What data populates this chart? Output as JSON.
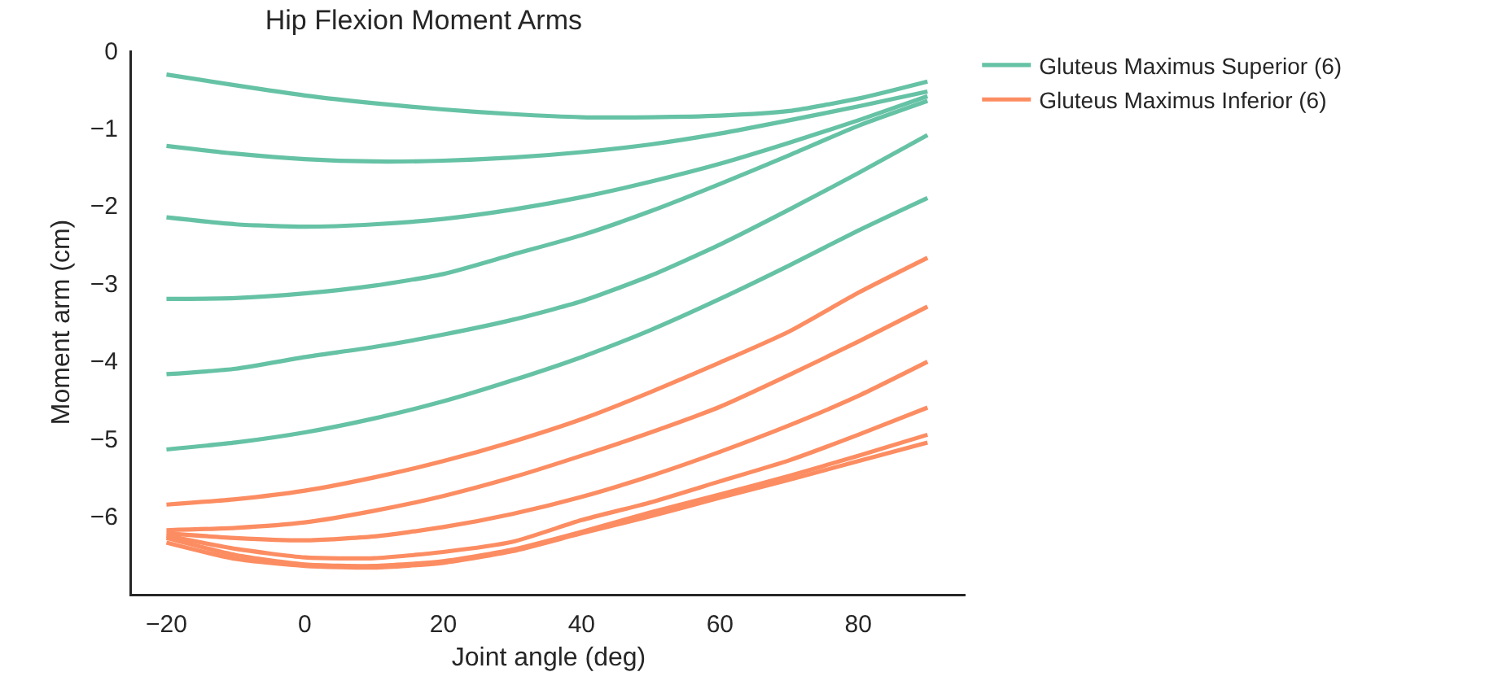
{
  "chart_data": {
    "type": "line",
    "title": "Hip Flexion Moment Arms",
    "xlabel": "Joint angle (deg)",
    "ylabel": "Moment arm (cm)",
    "x": [
      -20,
      -10,
      0,
      10,
      20,
      30,
      40,
      50,
      60,
      70,
      80,
      90
    ],
    "xlim": [
      -25,
      95.5
    ],
    "xticks": [
      -20,
      0,
      20,
      40,
      60,
      80
    ],
    "ylim": [
      -7,
      0
    ],
    "yticks": [
      0,
      -1,
      -2,
      -3,
      -4,
      -5,
      -6
    ],
    "grid": false,
    "legend": "top right",
    "marker": "none",
    "line_style": "solid",
    "series": [
      {
        "name": "Gluteus Maximus Superior (6)",
        "color": "#66c2a5",
        "values": [
          -0.31,
          -0.45,
          -0.58,
          -0.68,
          -0.76,
          -0.82,
          -0.86,
          -0.86,
          -0.84,
          -0.78,
          -0.62,
          -0.4
        ]
      },
      {
        "color": "#66c2a5",
        "values": [
          -1.23,
          -1.33,
          -1.4,
          -1.43,
          -1.42,
          -1.38,
          -1.31,
          -1.21,
          -1.07,
          -0.9,
          -0.72,
          -0.53
        ]
      },
      {
        "color": "#66c2a5",
        "values": [
          -2.15,
          -2.24,
          -2.27,
          -2.24,
          -2.17,
          -2.05,
          -1.89,
          -1.69,
          -1.46,
          -1.19,
          -0.9,
          -0.59
        ]
      },
      {
        "color": "#66c2a5",
        "values": [
          -3.2,
          -3.19,
          -3.13,
          -3.03,
          -2.88,
          -2.63,
          -2.38,
          -2.07,
          -1.72,
          -1.35,
          -0.97,
          -0.65
        ]
      },
      {
        "color": "#66c2a5",
        "values": [
          -4.17,
          -4.1,
          -3.95,
          -3.82,
          -3.66,
          -3.47,
          -3.23,
          -2.9,
          -2.5,
          -2.05,
          -1.58,
          -1.09
        ]
      },
      {
        "color": "#66c2a5",
        "values": [
          -5.14,
          -5.05,
          -4.92,
          -4.74,
          -4.52,
          -4.25,
          -3.95,
          -3.6,
          -3.2,
          -2.77,
          -2.32,
          -1.9
        ]
      },
      {
        "name": "Gluteus Maximus Inferior (6)",
        "color": "#fc8d62",
        "values": [
          -5.85,
          -5.78,
          -5.67,
          -5.5,
          -5.29,
          -5.04,
          -4.75,
          -4.4,
          -4.02,
          -3.62,
          -3.12,
          -2.67
        ]
      },
      {
        "color": "#fc8d62",
        "values": [
          -6.18,
          -6.15,
          -6.08,
          -5.93,
          -5.74,
          -5.5,
          -5.22,
          -4.92,
          -4.59,
          -4.18,
          -3.75,
          -3.3
        ]
      },
      {
        "color": "#fc8d62",
        "values": [
          -6.22,
          -6.28,
          -6.31,
          -6.26,
          -6.14,
          -5.97,
          -5.75,
          -5.48,
          -5.17,
          -4.83,
          -4.45,
          -4.01
        ]
      },
      {
        "color": "#fc8d62",
        "values": [
          -6.25,
          -6.42,
          -6.53,
          -6.54,
          -6.46,
          -6.33,
          -6.05,
          -5.82,
          -5.55,
          -5.28,
          -4.95,
          -4.6
        ]
      },
      {
        "color": "#fc8d62",
        "values": [
          -6.28,
          -6.5,
          -6.62,
          -6.64,
          -6.58,
          -6.43,
          -6.2,
          -5.95,
          -5.72,
          -5.48,
          -5.22,
          -4.95
        ]
      },
      {
        "color": "#fc8d62",
        "values": [
          -6.34,
          -6.55,
          -6.64,
          -6.66,
          -6.6,
          -6.45,
          -6.22,
          -6.0,
          -5.76,
          -5.53,
          -5.29,
          -5.05
        ]
      }
    ]
  }
}
